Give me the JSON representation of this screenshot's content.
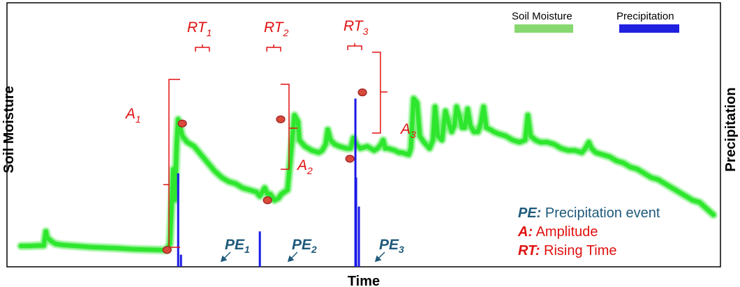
{
  "chart_data": {
    "type": "line",
    "xlabel": "Time",
    "ylabel": "Soil Moisture",
    "y2label": "Precipitation",
    "grid": false,
    "legend_placement": "top-right",
    "series": [
      {
        "name": "Soil Moisture",
        "color": "#2ee62e",
        "points": [
          [
            0,
            5
          ],
          [
            1.2,
            5
          ],
          [
            2.5,
            5.2
          ],
          [
            3.3,
            5.2
          ],
          [
            3.6,
            12
          ],
          [
            3.8,
            9
          ],
          [
            4.5,
            7
          ],
          [
            5,
            6
          ],
          [
            6,
            5.5
          ],
          [
            8,
            5
          ],
          [
            10,
            4.5
          ],
          [
            12,
            4.2
          ],
          [
            14,
            3.9
          ],
          [
            16,
            3.5
          ],
          [
            18,
            3.3
          ],
          [
            20,
            3.1
          ],
          [
            21,
            3.0
          ],
          [
            21.5,
            6
          ],
          [
            22.0,
            42
          ],
          [
            22.2,
            27
          ],
          [
            22.5,
            55
          ],
          [
            22.7,
            66
          ],
          [
            23.0,
            62
          ],
          [
            23.3,
            58
          ],
          [
            24,
            55
          ],
          [
            25,
            53
          ],
          [
            26,
            49
          ],
          [
            27,
            45
          ],
          [
            28,
            41
          ],
          [
            29,
            38
          ],
          [
            30,
            36
          ],
          [
            31,
            35
          ],
          [
            32,
            33
          ],
          [
            33,
            32
          ],
          [
            34,
            31
          ],
          [
            34.5,
            29
          ],
          [
            35.2,
            33
          ],
          [
            35.6,
            30
          ],
          [
            36,
            30
          ],
          [
            36.6,
            27
          ],
          [
            37.2,
            28
          ],
          [
            37.6,
            30
          ],
          [
            38.5,
            32
          ],
          [
            39.5,
            68
          ],
          [
            40.0,
            65
          ],
          [
            40.2,
            56
          ],
          [
            41,
            53
          ],
          [
            42,
            51
          ],
          [
            43,
            50
          ],
          [
            43.5,
            51
          ],
          [
            44,
            54
          ],
          [
            44.3,
            61
          ],
          [
            44.7,
            56
          ],
          [
            45.3,
            54
          ],
          [
            46,
            53
          ],
          [
            47,
            52
          ],
          [
            47.6,
            52
          ],
          [
            48,
            57
          ],
          [
            48.4,
            54
          ],
          [
            49,
            52
          ],
          [
            50,
            53
          ],
          [
            51,
            51
          ],
          [
            51.5,
            52
          ],
          [
            52,
            54
          ],
          [
            52.3,
            56
          ],
          [
            52.6,
            52
          ],
          [
            53,
            52
          ],
          [
            54,
            51
          ],
          [
            54.6,
            50
          ],
          [
            55,
            50
          ],
          [
            56,
            49
          ],
          [
            56.3,
            52
          ],
          [
            56.7,
            76
          ],
          [
            57.2,
            74
          ],
          [
            57.6,
            58
          ],
          [
            58.2,
            55
          ],
          [
            59,
            52
          ],
          [
            59.5,
            56
          ],
          [
            59.8,
            72
          ],
          [
            60.2,
            58
          ],
          [
            60.8,
            56
          ],
          [
            61.3,
            70
          ],
          [
            61.8,
            64
          ],
          [
            62.2,
            60
          ],
          [
            62.6,
            63
          ],
          [
            62.9,
            72
          ],
          [
            63.3,
            68
          ],
          [
            63.7,
            62
          ],
          [
            64.1,
            62
          ],
          [
            64.5,
            71
          ],
          [
            64.9,
            63
          ],
          [
            65.4,
            60
          ],
          [
            66,
            60
          ],
          [
            66.4,
            64
          ],
          [
            66.8,
            72
          ],
          [
            67.2,
            62
          ],
          [
            67.8,
            61
          ],
          [
            68.3,
            60
          ],
          [
            69,
            59
          ],
          [
            70,
            58
          ],
          [
            71,
            56
          ],
          [
            72,
            55
          ],
          [
            72.8,
            56
          ],
          [
            73.2,
            68
          ],
          [
            73.6,
            58
          ],
          [
            74.3,
            56
          ],
          [
            75,
            55
          ],
          [
            76,
            55
          ],
          [
            77,
            54
          ],
          [
            78,
            52
          ],
          [
            79,
            51
          ],
          [
            80,
            51
          ],
          [
            81,
            50
          ],
          [
            81.5,
            52
          ],
          [
            82,
            55
          ],
          [
            82.4,
            52
          ],
          [
            83,
            50
          ],
          [
            84,
            49
          ],
          [
            85,
            48
          ],
          [
            86,
            46
          ],
          [
            87,
            45
          ],
          [
            88,
            43
          ],
          [
            89,
            42
          ],
          [
            90,
            40
          ],
          [
            91,
            38
          ],
          [
            92,
            37
          ],
          [
            93,
            35
          ],
          [
            94,
            33
          ],
          [
            95,
            31
          ],
          [
            96,
            29
          ],
          [
            97,
            27
          ],
          [
            98,
            26
          ],
          [
            99,
            23
          ],
          [
            100,
            20
          ]
        ]
      },
      {
        "name": "Precipitation",
        "color": "#1a1ae6",
        "events": [
          [
            22.7,
            40
          ],
          [
            23.1,
            0.8
          ],
          [
            34.5,
            12
          ],
          [
            48.3,
            76
          ],
          [
            48.4,
            38
          ],
          [
            48.8,
            24
          ]
        ]
      }
    ],
    "legend": [
      {
        "label": "Soil Moisture",
        "color": "#88d870"
      },
      {
        "label": "Precipitation",
        "color": "#2020e0"
      }
    ],
    "markers": [
      [
        21.1,
        3.1
      ],
      [
        23.3,
        64
      ],
      [
        35.6,
        27
      ],
      [
        37.5,
        66
      ],
      [
        47.5,
        47
      ],
      [
        49.3,
        79
      ]
    ],
    "annotations": {
      "rt": [
        {
          "base": "RT",
          "sub": "1"
        },
        {
          "base": "RT",
          "sub": "2"
        },
        {
          "base": "RT",
          "sub": "3"
        }
      ],
      "amplitudes": [
        {
          "base": "A",
          "sub": "1"
        },
        {
          "base": "A",
          "sub": "2"
        },
        {
          "base": "A",
          "sub": "3"
        }
      ],
      "pe": [
        {
          "base": "PE",
          "sub": "1"
        },
        {
          "base": "PE",
          "sub": "2"
        },
        {
          "base": "PE",
          "sub": "3"
        }
      ]
    },
    "key": [
      {
        "bold": "PE:",
        "text": " Precipitation event",
        "color": "#1f5a7a"
      },
      {
        "bold": "A:",
        "text": " Amplitude",
        "color": "#e01010"
      },
      {
        "bold": "RT:",
        "text": " Rising Time",
        "color": "#e01010"
      }
    ]
  }
}
